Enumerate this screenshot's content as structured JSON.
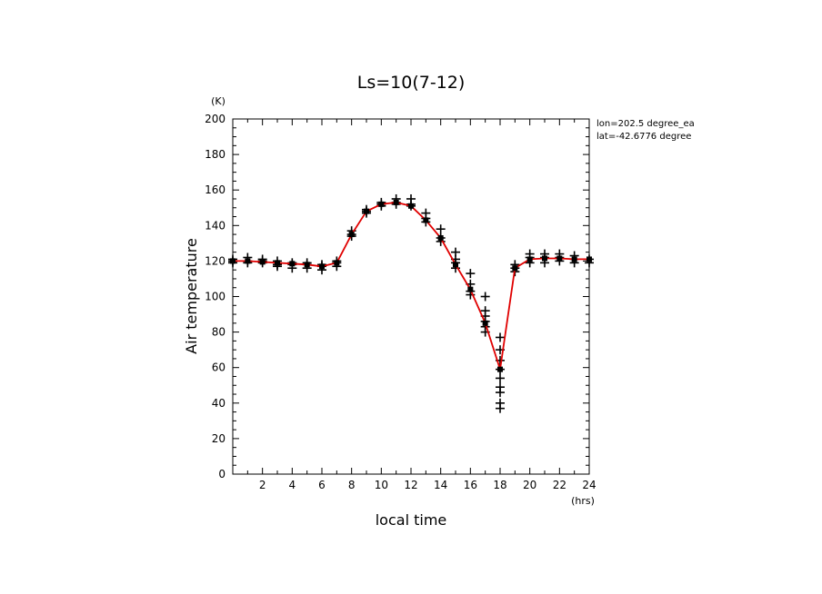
{
  "chart_data": {
    "type": "line",
    "title": "Ls=10(7-12)",
    "xlabel": "local time",
    "ylabel": "Air temperature",
    "x_unit": "(hrs)",
    "y_unit": "(K)",
    "xlim": [
      0,
      24
    ],
    "ylim": [
      0,
      200
    ],
    "x_ticks": [
      2,
      4,
      6,
      8,
      10,
      12,
      14,
      16,
      18,
      20,
      22,
      24
    ],
    "y_ticks": [
      0,
      20,
      40,
      60,
      80,
      100,
      120,
      140,
      160,
      180,
      200
    ],
    "grid": false,
    "annotations": [
      "lon=202.5 degree_ea",
      "lat=-42.6776 degree"
    ],
    "line_color": "#e00000",
    "marker_color": "#000000",
    "series": [
      {
        "style": "line",
        "x": [
          0,
          1,
          2,
          3,
          4,
          5,
          6,
          7,
          8,
          9,
          10,
          11,
          12,
          13,
          14,
          15,
          16,
          17,
          18,
          19,
          20,
          21,
          22,
          23,
          24
        ],
        "y": [
          120,
          120,
          119.5,
          119,
          118.5,
          118,
          117,
          119,
          135,
          148,
          152,
          153,
          151,
          143,
          133,
          118,
          104,
          85,
          59,
          116,
          121,
          121.5,
          121.5,
          121,
          121
        ]
      },
      {
        "style": "scatter",
        "points": [
          [
            0,
            121
          ],
          [
            0,
            119
          ],
          [
            0,
            120
          ],
          [
            1,
            122
          ],
          [
            1,
            119
          ],
          [
            1,
            120
          ],
          [
            2,
            121
          ],
          [
            2,
            119
          ],
          [
            2,
            120
          ],
          [
            3,
            120
          ],
          [
            3,
            117
          ],
          [
            3,
            118
          ],
          [
            4,
            119
          ],
          [
            4,
            116
          ],
          [
            4,
            118
          ],
          [
            5,
            119
          ],
          [
            5,
            116
          ],
          [
            5,
            118
          ],
          [
            6,
            118
          ],
          [
            6,
            115
          ],
          [
            6,
            117
          ],
          [
            7,
            120
          ],
          [
            7,
            117
          ],
          [
            7,
            119
          ],
          [
            8,
            137
          ],
          [
            8,
            134
          ],
          [
            8,
            135
          ],
          [
            9,
            149
          ],
          [
            9,
            147
          ],
          [
            9,
            148
          ],
          [
            10,
            153
          ],
          [
            10,
            151
          ],
          [
            10,
            152
          ],
          [
            11,
            155
          ],
          [
            11,
            152
          ],
          [
            11,
            153
          ],
          [
            12,
            155
          ],
          [
            12,
            151
          ],
          [
            12,
            152
          ],
          [
            13,
            147
          ],
          [
            13,
            142
          ],
          [
            13,
            144
          ],
          [
            14,
            138
          ],
          [
            14,
            133
          ],
          [
            14,
            131
          ],
          [
            15,
            125
          ],
          [
            15,
            119
          ],
          [
            15,
            116
          ],
          [
            15,
            121
          ],
          [
            16,
            113
          ],
          [
            16,
            107
          ],
          [
            16,
            103
          ],
          [
            16,
            101
          ],
          [
            17,
            100
          ],
          [
            17,
            92
          ],
          [
            17,
            89
          ],
          [
            17,
            86
          ],
          [
            17,
            83
          ],
          [
            17,
            80
          ],
          [
            18,
            77
          ],
          [
            18,
            70
          ],
          [
            18,
            64
          ],
          [
            18,
            59
          ],
          [
            18,
            54
          ],
          [
            18,
            49
          ],
          [
            18,
            46
          ],
          [
            18,
            40
          ],
          [
            18,
            37
          ],
          [
            19,
            118
          ],
          [
            19,
            116
          ],
          [
            19,
            114
          ],
          [
            20,
            124
          ],
          [
            20,
            122
          ],
          [
            20,
            119
          ],
          [
            21,
            124
          ],
          [
            21,
            122
          ],
          [
            21,
            119
          ],
          [
            22,
            124
          ],
          [
            22,
            122
          ],
          [
            22,
            120
          ],
          [
            23,
            123
          ],
          [
            23,
            121
          ],
          [
            23,
            119
          ],
          [
            24,
            121
          ],
          [
            24,
            119
          ]
        ]
      }
    ]
  }
}
